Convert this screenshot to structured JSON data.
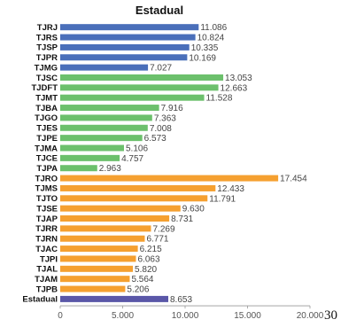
{
  "chart_data": {
    "type": "bar",
    "orientation": "horizontal",
    "title": "Estadual",
    "xlim": [
      0,
      20000
    ],
    "xticks": [
      "0",
      "5.000",
      "10.000",
      "15.000",
      "20.000"
    ],
    "xtick_values": [
      0,
      5000,
      10000,
      15000,
      20000
    ],
    "grid": false,
    "bars": [
      {
        "category": "TJRJ",
        "value": 11086,
        "label": "11.086",
        "color": "#4a6fba"
      },
      {
        "category": "TJRS",
        "value": 10824,
        "label": "10.824",
        "color": "#4a6fba"
      },
      {
        "category": "TJSP",
        "value": 10335,
        "label": "10.335",
        "color": "#4a6fba"
      },
      {
        "category": "TJPR",
        "value": 10169,
        "label": "10.169",
        "color": "#4a6fba"
      },
      {
        "category": "TJMG",
        "value": 7027,
        "label": "7.027",
        "color": "#4a6fba"
      },
      {
        "category": "TJSC",
        "value": 13053,
        "label": "13.053",
        "color": "#6cc06c"
      },
      {
        "category": "TJDFT",
        "value": 12663,
        "label": "12.663",
        "color": "#6cc06c"
      },
      {
        "category": "TJMT",
        "value": 11528,
        "label": "11.528",
        "color": "#6cc06c"
      },
      {
        "category": "TJBA",
        "value": 7916,
        "label": "7.916",
        "color": "#6cc06c"
      },
      {
        "category": "TJGO",
        "value": 7363,
        "label": "7.363",
        "color": "#6cc06c"
      },
      {
        "category": "TJES",
        "value": 7008,
        "label": "7.008",
        "color": "#6cc06c"
      },
      {
        "category": "TJPE",
        "value": 6573,
        "label": "6.573",
        "color": "#6cc06c"
      },
      {
        "category": "TJMA",
        "value": 5106,
        "label": "5.106",
        "color": "#6cc06c"
      },
      {
        "category": "TJCE",
        "value": 4757,
        "label": "4.757",
        "color": "#6cc06c"
      },
      {
        "category": "TJPA",
        "value": 2963,
        "label": "2.963",
        "color": "#6cc06c"
      },
      {
        "category": "TJRO",
        "value": 17454,
        "label": "17.454",
        "color": "#f5a030"
      },
      {
        "category": "TJMS",
        "value": 12433,
        "label": "12.433",
        "color": "#f5a030"
      },
      {
        "category": "TJTO",
        "value": 11791,
        "label": "11.791",
        "color": "#f5a030"
      },
      {
        "category": "TJSE",
        "value": 9630,
        "label": "9.630",
        "color": "#f5a030"
      },
      {
        "category": "TJAP",
        "value": 8731,
        "label": "8.731",
        "color": "#f5a030"
      },
      {
        "category": "TJRR",
        "value": 7269,
        "label": "7.269",
        "color": "#f5a030"
      },
      {
        "category": "TJRN",
        "value": 6771,
        "label": "6.771",
        "color": "#f5a030"
      },
      {
        "category": "TJAC",
        "value": 6215,
        "label": "6.215",
        "color": "#f5a030"
      },
      {
        "category": "TJPI",
        "value": 6063,
        "label": "6.063",
        "color": "#f5a030"
      },
      {
        "category": "TJAL",
        "value": 5820,
        "label": "5.820",
        "color": "#f5a030"
      },
      {
        "category": "TJAM",
        "value": 5564,
        "label": "5.564",
        "color": "#f5a030"
      },
      {
        "category": "TJPB",
        "value": 5206,
        "label": "5.206",
        "color": "#f5a030"
      },
      {
        "category": "Estadual",
        "value": 8653,
        "label": "8.653",
        "color": "#5a57a8"
      }
    ]
  },
  "page_number": "30"
}
